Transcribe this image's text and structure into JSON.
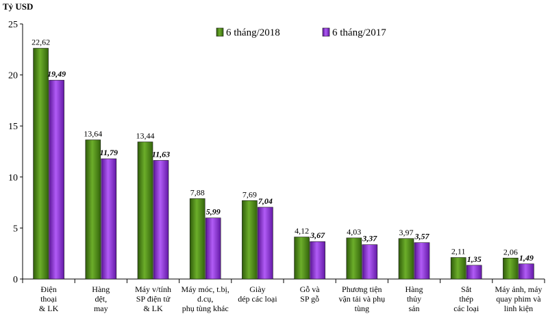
{
  "chart_data": {
    "type": "bar",
    "ylabel": "Tỷ USD",
    "ylim": [
      0,
      25
    ],
    "yticks": [
      0,
      5,
      10,
      15,
      20,
      25
    ],
    "grid": false,
    "legend_position": "top-center",
    "categories": [
      [
        "Điện",
        "thoại",
        "& LK"
      ],
      [
        "Hàng",
        "dệt,",
        "may"
      ],
      [
        "Máy v/tính",
        "SP điện tử",
        "& LK"
      ],
      [
        "Máy móc, t.bị,",
        "d.cụ,",
        "phụ tùng khác"
      ],
      [
        "Giày",
        "dép các loại"
      ],
      [
        "Gỗ và",
        "SP gỗ"
      ],
      [
        "Phương tiện",
        "vận tải và phụ",
        "tùng"
      ],
      [
        "Hàng",
        "thủy",
        "sản"
      ],
      [
        "Sắt",
        "thép",
        "các loại"
      ],
      [
        "Máy ảnh, máy",
        "quay phim và",
        "linh kiện"
      ]
    ],
    "series": [
      {
        "name": "6 tháng/2018",
        "color": "#5a9a1e",
        "values": [
          22.62,
          13.64,
          13.44,
          7.88,
          7.69,
          4.12,
          4.03,
          3.97,
          2.11,
          2.06
        ],
        "labels": [
          "22,62",
          "13,64",
          "13,44",
          "7,88",
          "7,69",
          "4,12",
          "4,03",
          "3,97",
          "2,11",
          "2,06"
        ]
      },
      {
        "name": "6 tháng/2017",
        "color": "#9a3ce0",
        "values": [
          19.49,
          11.79,
          11.63,
          5.99,
          7.04,
          3.67,
          3.37,
          3.57,
          1.35,
          1.49
        ],
        "labels": [
          "19,49",
          "11,79",
          "11,63",
          "5,99",
          "7,04",
          "3,67",
          "3,37",
          "3,57",
          "1,35",
          "1,49"
        ]
      }
    ]
  }
}
